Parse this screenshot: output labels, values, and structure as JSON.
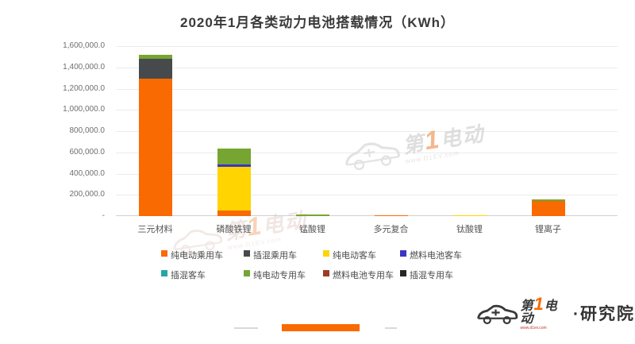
{
  "title": "2020年1月各类动力电池搭载情况（KWh）",
  "chart_data": {
    "type": "bar",
    "stacked": true,
    "title": "2020年1月各类动力电池搭载情况（KWh）",
    "xlabel": "",
    "ylabel": "",
    "unit": "KWh",
    "grid": true,
    "legend_position": "bottom",
    "ylim": [
      0,
      1600000
    ],
    "ytick_interval": 200000,
    "ytick_labels": [
      "-",
      "200,000.0",
      "400,000.0",
      "600,000.0",
      "800,000.0",
      "1,000,000.0",
      "1,200,000.0",
      "1,400,000.0",
      "1,600,000.0"
    ],
    "categories": [
      "三元材料",
      "磷酸铁锂",
      "锰酸锂",
      "多元复合",
      "钛酸锂",
      "锂离子"
    ],
    "series": [
      {
        "name": "纯电动乘用车",
        "color": "#f96a02",
        "values": [
          1295000,
          50000,
          0,
          10000,
          0,
          145000
        ]
      },
      {
        "name": "插混乘用车",
        "color": "#474a4d",
        "values": [
          185000,
          0,
          0,
          0,
          0,
          0
        ]
      },
      {
        "name": "纯电动客车",
        "color": "#ffd400",
        "values": [
          0,
          410000,
          0,
          0,
          10000,
          0
        ]
      },
      {
        "name": "燃料电池客车",
        "color": "#3d35c1",
        "values": [
          0,
          25000,
          0,
          0,
          0,
          0
        ]
      },
      {
        "name": "插混客车",
        "color": "#27a6a1",
        "values": [
          0,
          0,
          0,
          0,
          0,
          0
        ]
      },
      {
        "name": "纯电动专用车",
        "color": "#76a531",
        "values": [
          40000,
          150000,
          15000,
          0,
          0,
          10000
        ]
      },
      {
        "name": "燃料电池专用车",
        "color": "#9e3b25",
        "values": [
          0,
          0,
          0,
          0,
          0,
          0
        ]
      },
      {
        "name": "插混专用车",
        "color": "#262626",
        "values": [
          0,
          0,
          0,
          0,
          0,
          0
        ]
      }
    ]
  },
  "watermark": {
    "brand_prefix": "第",
    "brand_number": "1",
    "brand_suffix": "电动",
    "url_text": "www.D1EV.com"
  },
  "footer_logo": {
    "brand_prefix": "第",
    "brand_number": "1",
    "brand_suffix": "电动",
    "url_text": "www.d1ev.com",
    "separator": "·",
    "division": "研究院"
  },
  "colors": {
    "accent_orange": "#f96a02",
    "gridline": "#ebebeb",
    "axis_text": "#6e6e6e",
    "title_text": "#3a3a3a"
  }
}
